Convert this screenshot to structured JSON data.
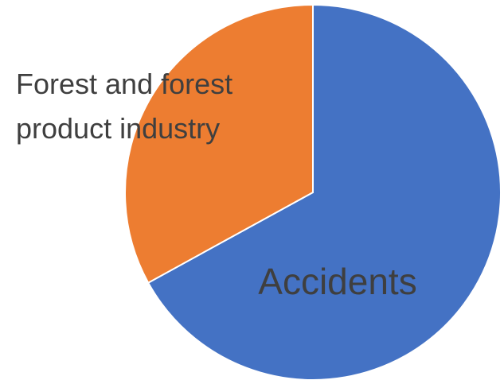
{
  "chart_data": {
    "type": "pie",
    "categories": [
      "Accidents",
      "Forest and forest product industry"
    ],
    "label_lines": [
      [
        "Accidents"
      ],
      [
        "Forest and forest",
        "product industry"
      ]
    ],
    "values": [
      67,
      33
    ],
    "colors": [
      "#4472c4",
      "#ed7d31"
    ],
    "start_angle_deg": 0,
    "direction": "clockwise",
    "legend": "none"
  }
}
